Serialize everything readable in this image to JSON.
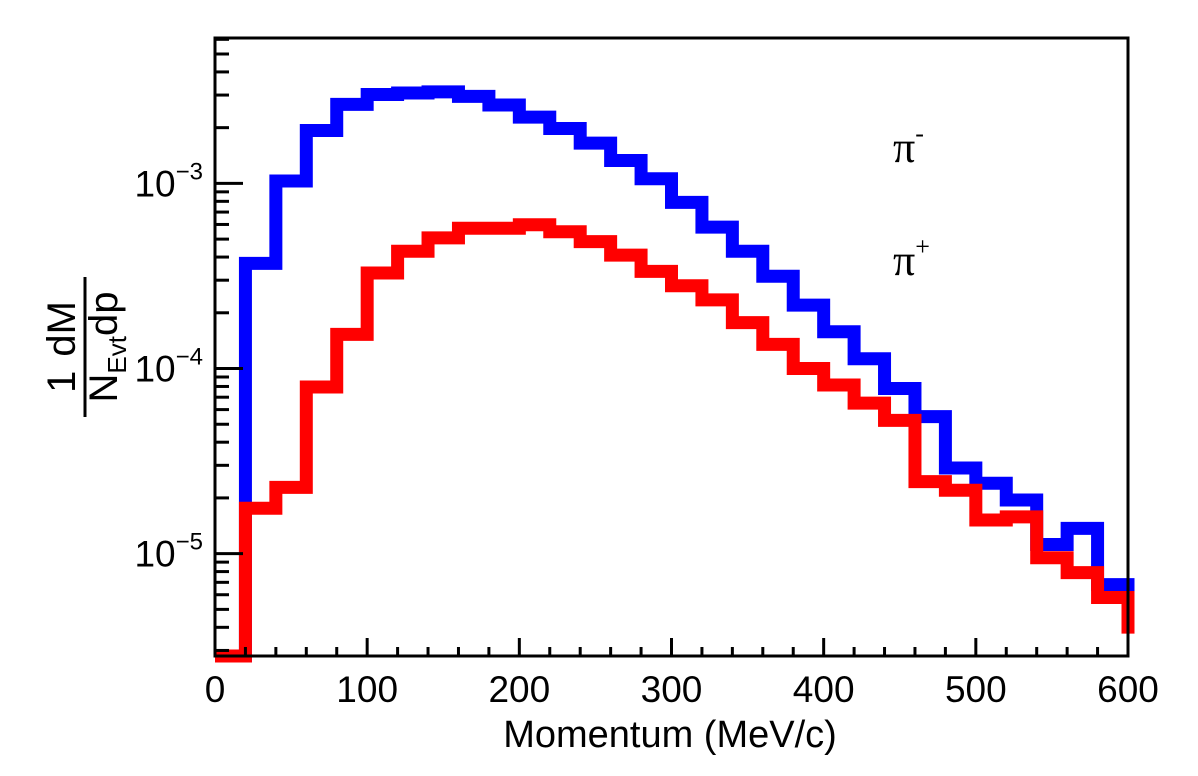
{
  "chart_data": {
    "type": "histogram",
    "title": "",
    "xlabel": "Momentum (MeV/c)",
    "ylabel": {
      "numerator": "1",
      "denominator_prefix": "N",
      "denominator_subscript": "Evt",
      "denominator_suffix": "dp",
      "numerator_suffix": "dM"
    },
    "xlim": [
      0,
      600
    ],
    "ylim": [
      2.8e-06,
      0.0061
    ],
    "yscale": "log",
    "xticks": [
      0,
      100,
      200,
      300,
      400,
      500,
      600
    ],
    "yticks": [
      {
        "value": 0.001,
        "base": "10",
        "exp": "−3"
      },
      {
        "value": 0.0001,
        "base": "10",
        "exp": "−4"
      },
      {
        "value": 1e-05,
        "base": "10",
        "exp": "−5"
      }
    ],
    "bin_edges": [
      0,
      20,
      40,
      60,
      80,
      100,
      120,
      140,
      160,
      180,
      200,
      220,
      240,
      260,
      280,
      300,
      320,
      340,
      360,
      380,
      400,
      420,
      440,
      460,
      480,
      500,
      520,
      540,
      560,
      580,
      600
    ],
    "legend_position": "top-right",
    "series": [
      {
        "name": "π⁻",
        "label_base": "π",
        "label_sup": "-",
        "color": "#0000ff",
        "values": [
          2.8e-06,
          0.00037,
          0.00103,
          0.00193,
          0.00267,
          0.00302,
          0.00308,
          0.00312,
          0.00295,
          0.00265,
          0.00228,
          0.00198,
          0.00165,
          0.00133,
          0.00106,
          0.00079,
          0.00058,
          0.00043,
          0.000315,
          0.00022,
          0.000158,
          0.000113,
          7.8e-05,
          5.5e-05,
          2.9e-05,
          2.4e-05,
          1.95e-05,
          1.12e-05,
          1.37e-05,
          6.8e-06,
          5.2e-06
        ]
      },
      {
        "name": "π⁺",
        "label_base": "π",
        "label_sup": "+",
        "color": "#ff0000",
        "values": [
          2.8e-06,
          1.76e-05,
          2.28e-05,
          7.95e-05,
          0.000153,
          0.000328,
          0.00043,
          0.000508,
          0.000572,
          0.000572,
          0.000598,
          0.000548,
          0.000485,
          0.00041,
          0.000335,
          0.00028,
          0.000235,
          0.000177,
          0.000135,
          0.0001,
          8.15e-05,
          6.5e-05,
          5.25e-05,
          2.45e-05,
          2.2e-05,
          1.52e-05,
          1.58e-05,
          9.5e-06,
          7.9e-06,
          5.8e-06,
          3.7e-06
        ]
      }
    ]
  }
}
